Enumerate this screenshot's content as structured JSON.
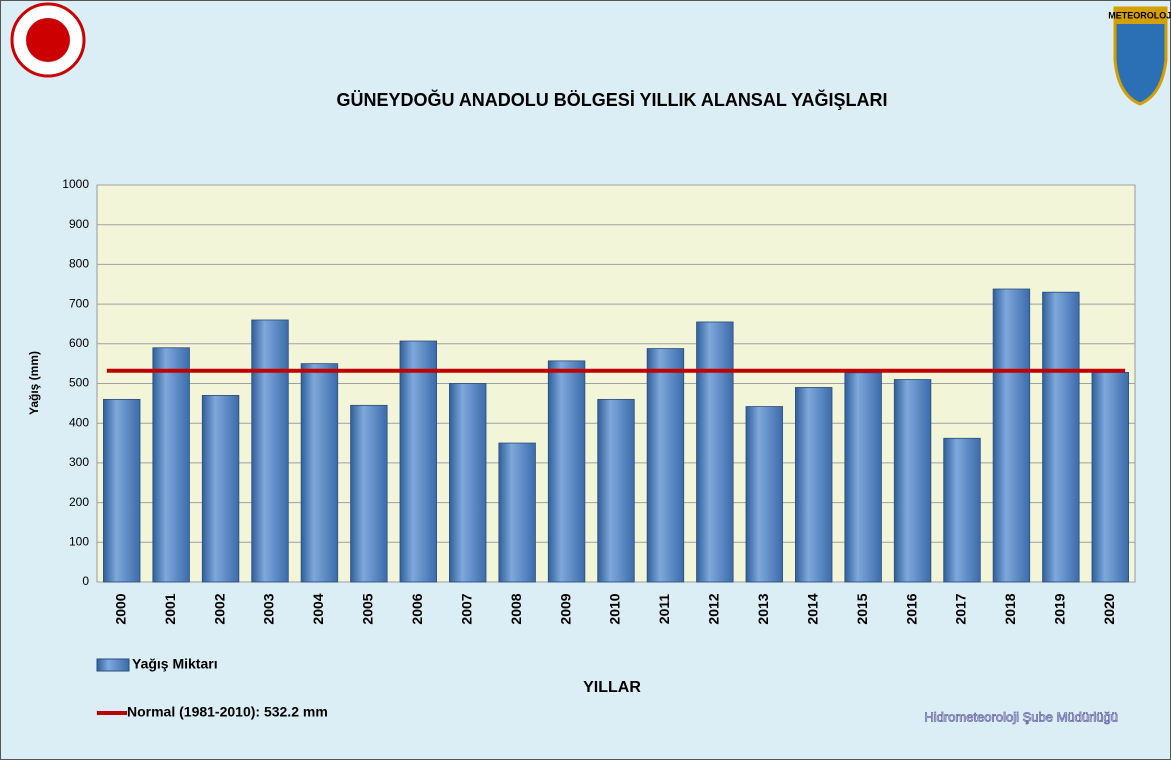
{
  "chart_data": {
    "type": "bar",
    "title": "GÜNEYDOĞU ANADOLU BÖLGESİ  YILLIK ALANSAL YAĞIŞLARI",
    "x_label": "YILLAR",
    "y_label": "Yağış (mm)",
    "categories": [
      "2000",
      "2001",
      "2002",
      "2003",
      "2004",
      "2005",
      "2006",
      "2007",
      "2008",
      "2009",
      "2010",
      "2011",
      "2012",
      "2013",
      "2014",
      "2015",
      "2016",
      "2017",
      "2018",
      "2019",
      "2020"
    ],
    "series": [
      {
        "name": "Yağış Miktarı",
        "color": "#4f81bd",
        "values": [
          460,
          590,
          470,
          660,
          550,
          445,
          607,
          500,
          350,
          557,
          460,
          588,
          655,
          442,
          490,
          527,
          510,
          362,
          738,
          730,
          528
        ]
      }
    ],
    "reference_lines": [
      {
        "name": "Normal (1981-2010): 532.2 mm",
        "value": 532.2,
        "color": "#c00000"
      }
    ],
    "ylim": [
      0,
      1000
    ],
    "yticks": [
      0,
      100,
      200,
      300,
      400,
      500,
      600,
      700,
      800,
      900,
      1000
    ],
    "grid": true,
    "logo_text": "METEOROLOJİ",
    "footer": "Hidrometeoroloji Şube Müdürlüğü"
  }
}
